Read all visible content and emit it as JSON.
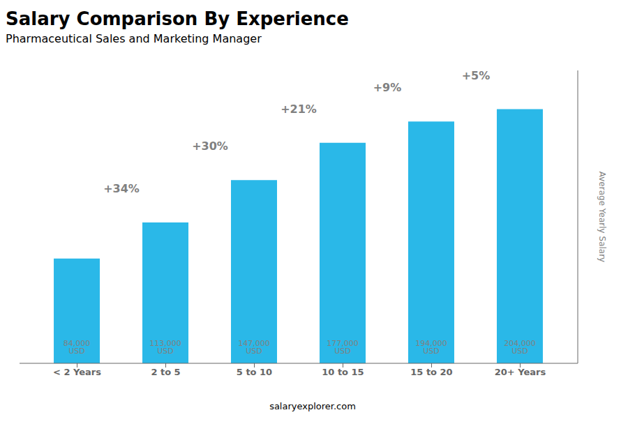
{
  "chart_data": {
    "type": "bar",
    "title": "Salary Comparison By Experience",
    "subtitle": "Pharmaceutical Sales and Marketing Manager",
    "categories": [
      "< 2 Years",
      "2 to 5",
      "5 to 10",
      "10 to 15",
      "15 to 20",
      "20+ Years"
    ],
    "values": [
      84000,
      113000,
      147000,
      177000,
      194000,
      204000
    ],
    "value_labels": [
      "84,000 USD",
      "113,000 USD",
      "147,000 USD",
      "177,000 USD",
      "194,000 USD",
      "204,000 USD"
    ],
    "data_labels": true,
    "annotations": [
      "+34%",
      "+30%",
      "+21%",
      "+9%",
      "+5%"
    ],
    "ylabel": "Average Yearly Salary",
    "footer": "salaryexplorer.com",
    "color": "#2ab8e8",
    "ylim": [
      0,
      235000
    ],
    "tick_labels": "x",
    "grid": false
  }
}
